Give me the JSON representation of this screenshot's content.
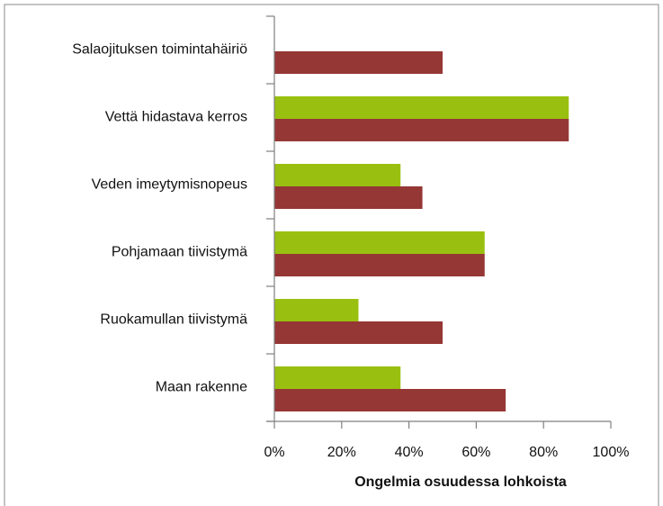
{
  "chart_data": {
    "type": "bar",
    "orientation": "horizontal",
    "x_label": "Ongelmia osuudessa lohkoista",
    "categories": [
      "Salaojituksen toimintahäiriö",
      "Vettä hidastava kerros",
      "Veden imeytymisnopeus",
      "Pohjamaan tiivistymä",
      "Ruokamullan tiivistymä",
      "Maan rakenne"
    ],
    "series": [
      {
        "color": "#99c010",
        "values": [
          0,
          87.5,
          37.5,
          62.5,
          25,
          37.5
        ]
      },
      {
        "color": "#953735",
        "values": [
          50,
          87.5,
          44,
          62.5,
          50,
          68.75
        ]
      }
    ],
    "xlim": [
      0,
      100
    ],
    "xticks": [
      {
        "value": 0,
        "label": "0%"
      },
      {
        "value": 20,
        "label": "20%"
      },
      {
        "value": 40,
        "label": "40%"
      },
      {
        "value": 60,
        "label": "60%"
      },
      {
        "value": 80,
        "label": "80%"
      },
      {
        "value": 100,
        "label": "100%"
      }
    ]
  }
}
